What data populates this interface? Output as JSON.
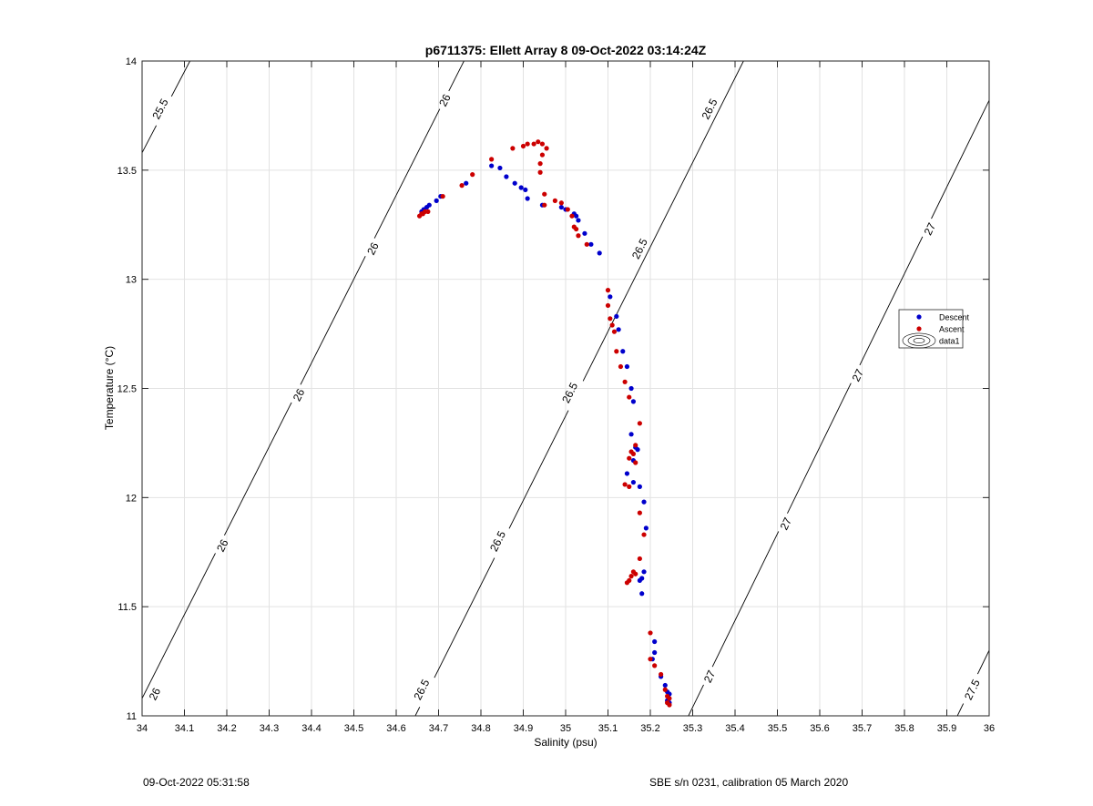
{
  "chart_data": {
    "type": "scatter",
    "title": "p6711375: Ellett Array 8 09-Oct-2022 03:14:24Z",
    "xlabel": "Salinity (psu)",
    "ylabel": "Temperature (°C)",
    "xlim": [
      34,
      36
    ],
    "ylim": [
      11,
      14
    ],
    "x_ticks": [
      34,
      34.1,
      34.2,
      34.3,
      34.4,
      34.5,
      34.6,
      34.7,
      34.8,
      34.9,
      35,
      35.1,
      35.2,
      35.3,
      35.4,
      35.5,
      35.6,
      35.7,
      35.8,
      35.9,
      36
    ],
    "x_tick_labels": [
      "34",
      "34.1",
      "34.2",
      "34.3",
      "34.4",
      "34.5",
      "34.6",
      "34.7",
      "34.8",
      "34.9",
      "35",
      "35.1",
      "35.2",
      "35.3",
      "35.4",
      "35.5",
      "35.6",
      "35.7",
      "35.8",
      "35.9",
      "36"
    ],
    "y_ticks": [
      11,
      11.5,
      12,
      12.5,
      13,
      13.5,
      14
    ],
    "y_tick_labels": [
      "11",
      "11.5",
      "12",
      "12.5",
      "13",
      "13.5",
      "14"
    ],
    "grid": true,
    "legend_position": "right",
    "legend": [
      {
        "label": "Descent",
        "color": "#0000cc",
        "marker": "dot"
      },
      {
        "label": "Ascent",
        "color": "#cc0000",
        "marker": "dot"
      },
      {
        "label": "data1",
        "marker": "contour"
      }
    ],
    "series": [
      {
        "name": "Descent",
        "color": "#0000cc",
        "points": [
          [
            34.66,
            13.31
          ],
          [
            34.665,
            13.32
          ],
          [
            34.672,
            13.33
          ],
          [
            34.678,
            13.34
          ],
          [
            34.695,
            13.36
          ],
          [
            34.705,
            13.38
          ],
          [
            34.765,
            13.44
          ],
          [
            34.825,
            13.52
          ],
          [
            34.845,
            13.51
          ],
          [
            34.86,
            13.47
          ],
          [
            34.88,
            13.44
          ],
          [
            34.895,
            13.42
          ],
          [
            34.905,
            13.41
          ],
          [
            34.91,
            13.37
          ],
          [
            34.945,
            13.34
          ],
          [
            34.99,
            13.33
          ],
          [
            35.0,
            13.32
          ],
          [
            35.02,
            13.3
          ],
          [
            35.025,
            13.29
          ],
          [
            35.03,
            13.27
          ],
          [
            35.045,
            13.21
          ],
          [
            35.06,
            13.16
          ],
          [
            35.08,
            13.12
          ],
          [
            35.105,
            12.92
          ],
          [
            35.12,
            12.83
          ],
          [
            35.125,
            12.77
          ],
          [
            35.135,
            12.67
          ],
          [
            35.145,
            12.6
          ],
          [
            35.155,
            12.5
          ],
          [
            35.16,
            12.44
          ],
          [
            35.155,
            12.29
          ],
          [
            35.165,
            12.23
          ],
          [
            35.17,
            12.22
          ],
          [
            35.16,
            12.17
          ],
          [
            35.145,
            12.11
          ],
          [
            35.16,
            12.07
          ],
          [
            35.175,
            12.05
          ],
          [
            35.185,
            11.98
          ],
          [
            35.19,
            11.86
          ],
          [
            35.185,
            11.66
          ],
          [
            35.18,
            11.63
          ],
          [
            35.175,
            11.62
          ],
          [
            35.18,
            11.56
          ],
          [
            35.21,
            11.34
          ],
          [
            35.21,
            11.29
          ],
          [
            35.205,
            11.26
          ],
          [
            35.225,
            11.18
          ],
          [
            35.235,
            11.14
          ],
          [
            35.24,
            11.11
          ],
          [
            35.245,
            11.1
          ],
          [
            35.24,
            11.07
          ],
          [
            35.245,
            11.06
          ]
        ]
      },
      {
        "name": "Ascent",
        "color": "#cc0000",
        "points": [
          [
            34.655,
            13.29
          ],
          [
            34.66,
            13.3
          ],
          [
            34.663,
            13.3
          ],
          [
            34.668,
            13.31
          ],
          [
            34.675,
            13.31
          ],
          [
            34.71,
            13.38
          ],
          [
            34.755,
            13.43
          ],
          [
            34.78,
            13.48
          ],
          [
            34.825,
            13.55
          ],
          [
            34.875,
            13.6
          ],
          [
            34.9,
            13.61
          ],
          [
            34.91,
            13.62
          ],
          [
            34.925,
            13.62
          ],
          [
            34.935,
            13.63
          ],
          [
            34.945,
            13.62
          ],
          [
            34.955,
            13.6
          ],
          [
            34.945,
            13.57
          ],
          [
            34.94,
            13.53
          ],
          [
            34.94,
            13.49
          ],
          [
            34.95,
            13.39
          ],
          [
            34.95,
            13.34
          ],
          [
            34.975,
            13.36
          ],
          [
            34.99,
            13.35
          ],
          [
            35.005,
            13.32
          ],
          [
            35.015,
            13.29
          ],
          [
            35.02,
            13.24
          ],
          [
            35.025,
            13.23
          ],
          [
            35.03,
            13.2
          ],
          [
            35.05,
            13.16
          ],
          [
            35.1,
            12.95
          ],
          [
            35.1,
            12.88
          ],
          [
            35.105,
            12.82
          ],
          [
            35.11,
            12.79
          ],
          [
            35.115,
            12.76
          ],
          [
            35.12,
            12.67
          ],
          [
            35.13,
            12.6
          ],
          [
            35.14,
            12.53
          ],
          [
            35.15,
            12.46
          ],
          [
            35.175,
            12.34
          ],
          [
            35.165,
            12.24
          ],
          [
            35.155,
            12.21
          ],
          [
            35.16,
            12.2
          ],
          [
            35.15,
            12.18
          ],
          [
            35.165,
            12.16
          ],
          [
            35.14,
            12.06
          ],
          [
            35.15,
            12.05
          ],
          [
            35.175,
            11.93
          ],
          [
            35.185,
            11.83
          ],
          [
            35.175,
            11.72
          ],
          [
            35.16,
            11.66
          ],
          [
            35.165,
            11.65
          ],
          [
            35.155,
            11.64
          ],
          [
            35.15,
            11.62
          ],
          [
            35.145,
            11.61
          ],
          [
            35.2,
            11.38
          ],
          [
            35.2,
            11.26
          ],
          [
            35.21,
            11.23
          ],
          [
            35.225,
            11.19
          ],
          [
            35.235,
            11.12
          ],
          [
            35.24,
            11.09
          ],
          [
            35.245,
            11.08
          ],
          [
            35.24,
            11.06
          ],
          [
            35.245,
            11.05
          ]
        ]
      }
    ],
    "contours": [
      {
        "level": "25.5",
        "line": [
          [
            34.0,
            13.58
          ],
          [
            34.113,
            14.0
          ]
        ],
        "labels": [
          {
            "text": "25.5",
            "x": 34.043,
            "y": 13.78
          }
        ]
      },
      {
        "level": "26",
        "line": [
          [
            34.0,
            11.08
          ],
          [
            34.76,
            14.0
          ]
        ],
        "labels": [
          {
            "text": "26",
            "x": 34.03,
            "y": 11.1
          },
          {
            "text": "26",
            "x": 34.19,
            "y": 11.78
          },
          {
            "text": "26",
            "x": 34.37,
            "y": 12.47
          },
          {
            "text": "26",
            "x": 34.545,
            "y": 13.14
          },
          {
            "text": "26",
            "x": 34.715,
            "y": 13.82
          }
        ]
      },
      {
        "level": "26.5",
        "line": [
          [
            34.645,
            11.0
          ],
          [
            35.42,
            14.0
          ]
        ],
        "labels": [
          {
            "text": "26.5",
            "x": 34.66,
            "y": 11.12
          },
          {
            "text": "26.5",
            "x": 34.84,
            "y": 11.8
          },
          {
            "text": "26.5",
            "x": 35.01,
            "y": 12.48
          },
          {
            "text": "26.5",
            "x": 35.175,
            "y": 13.14
          },
          {
            "text": "26.5",
            "x": 35.34,
            "y": 13.78
          }
        ]
      },
      {
        "level": "27",
        "line": [
          [
            35.29,
            11.0
          ],
          [
            36.0,
            13.82
          ]
        ],
        "labels": [
          {
            "text": "27",
            "x": 35.34,
            "y": 11.18
          },
          {
            "text": "27",
            "x": 35.52,
            "y": 11.88
          },
          {
            "text": "27",
            "x": 35.69,
            "y": 12.56
          },
          {
            "text": "27",
            "x": 35.86,
            "y": 13.23
          }
        ]
      },
      {
        "level": "27.5",
        "line": [
          [
            35.925,
            11.0
          ],
          [
            36.0,
            11.3
          ]
        ],
        "labels": [
          {
            "text": "27.5",
            "x": 35.96,
            "y": 11.12
          }
        ]
      }
    ]
  },
  "footer": {
    "left": "09-Oct-2022 05:31:58",
    "right": "SBE s/n 0231, calibration 05 March 2020"
  }
}
